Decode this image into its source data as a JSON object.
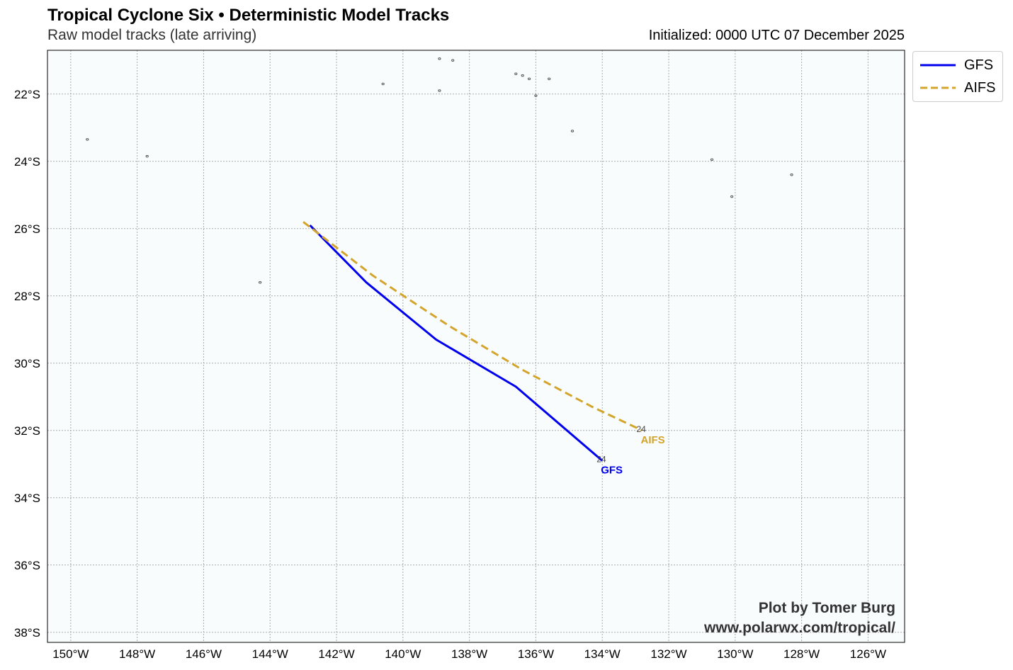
{
  "header": {
    "title": "Tropical Cyclone Six • Deterministic Model Tracks",
    "subtitle": "Raw model tracks (late arriving)",
    "initialized": "Initialized: 0000 UTC 07 December 2025"
  },
  "legend": {
    "placement": "outside-top-right",
    "items": [
      {
        "label": "GFS",
        "color": "#0000ee",
        "style": "solid"
      },
      {
        "label": "AIFS",
        "color": "#d4a52c",
        "style": "dashed"
      }
    ]
  },
  "credit": {
    "line1": "Plot by Tomer Burg",
    "line2": "www.polarwx.com/tropical/"
  },
  "colors": {
    "ocean": "#f8fcfd",
    "grid": "#aaaaaa",
    "gfs": "#0000ee",
    "aifs": "#d4a52c"
  },
  "chart_data": {
    "type": "map",
    "projection": "plate-carree",
    "lon_range": [
      -150.7,
      -124.9
    ],
    "lat_range": [
      -38.3,
      -20.7
    ],
    "grid": true,
    "x_ticks": [
      {
        "value": -150,
        "label": "150°W"
      },
      {
        "value": -148,
        "label": "148°W"
      },
      {
        "value": -146,
        "label": "146°W"
      },
      {
        "value": -144,
        "label": "144°W"
      },
      {
        "value": -142,
        "label": "142°W"
      },
      {
        "value": -140,
        "label": "140°W"
      },
      {
        "value": -138,
        "label": "138°W"
      },
      {
        "value": -136,
        "label": "136°W"
      },
      {
        "value": -134,
        "label": "134°W"
      },
      {
        "value": -132,
        "label": "132°W"
      },
      {
        "value": -130,
        "label": "130°W"
      },
      {
        "value": -128,
        "label": "128°W"
      },
      {
        "value": -126,
        "label": "126°W"
      }
    ],
    "y_ticks": [
      {
        "value": -22,
        "label": "22°S"
      },
      {
        "value": -24,
        "label": "24°S"
      },
      {
        "value": -26,
        "label": "26°S"
      },
      {
        "value": -28,
        "label": "28°S"
      },
      {
        "value": -30,
        "label": "30°S"
      },
      {
        "value": -32,
        "label": "32°S"
      },
      {
        "value": -34,
        "label": "34°S"
      },
      {
        "value": -36,
        "label": "36°S"
      },
      {
        "value": -38,
        "label": "38°S"
      }
    ],
    "tracks": [
      {
        "name": "GFS",
        "end_label": "GFS",
        "end_hour": "24",
        "color": "#0000ee",
        "dashed": false,
        "points": [
          [
            -142.8,
            -25.9
          ],
          [
            -141.1,
            -27.6
          ],
          [
            -139.0,
            -29.3
          ],
          [
            -136.6,
            -30.7
          ],
          [
            -134.0,
            -32.9
          ]
        ]
      },
      {
        "name": "AIFS",
        "end_label": "AIFS",
        "end_hour": "24",
        "color": "#d4a52c",
        "dashed": true,
        "points": [
          [
            -143.0,
            -25.8
          ],
          [
            -140.9,
            -27.4
          ],
          [
            -138.6,
            -28.9
          ],
          [
            -136.4,
            -30.2
          ],
          [
            -134.3,
            -31.3
          ],
          [
            -132.8,
            -32.0
          ]
        ]
      }
    ],
    "islands": [
      {
        "lon": -149.5,
        "lat": -23.35
      },
      {
        "lon": -147.7,
        "lat": -23.85
      },
      {
        "lon": -144.3,
        "lat": -27.6
      },
      {
        "lon": -140.6,
        "lat": -21.7
      },
      {
        "lon": -138.9,
        "lat": -20.95
      },
      {
        "lon": -138.5,
        "lat": -21.0
      },
      {
        "lon": -138.9,
        "lat": -21.9
      },
      {
        "lon": -136.6,
        "lat": -21.4
      },
      {
        "lon": -136.4,
        "lat": -21.45
      },
      {
        "lon": -136.2,
        "lat": -21.55
      },
      {
        "lon": -135.6,
        "lat": -21.55
      },
      {
        "lon": -136.0,
        "lat": -22.05
      },
      {
        "lon": -134.9,
        "lat": -23.1
      },
      {
        "lon": -130.7,
        "lat": -23.95
      },
      {
        "lon": -130.1,
        "lat": -25.05
      },
      {
        "lon": -128.3,
        "lat": -24.4
      }
    ]
  }
}
